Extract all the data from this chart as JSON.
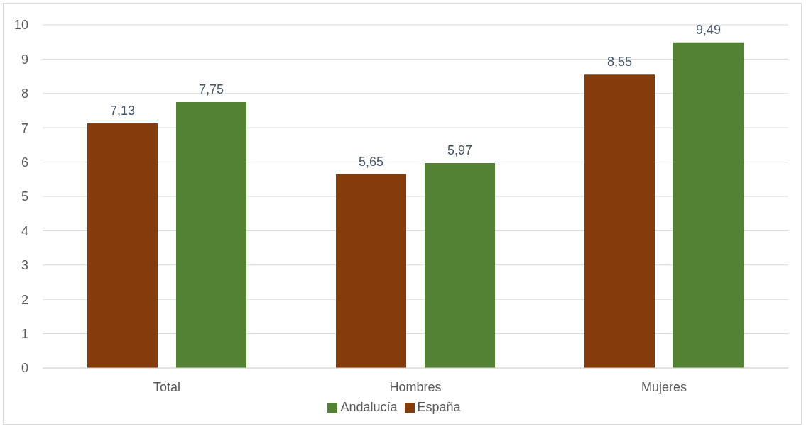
{
  "chart_data": {
    "type": "bar",
    "categories": [
      "Total",
      "Hombres",
      "Mujeres"
    ],
    "series": [
      {
        "name": "España",
        "color": "#843c0c",
        "values": [
          7.13,
          5.65,
          8.55
        ],
        "value_labels": [
          "7,13",
          "5,65",
          "8,55"
        ]
      },
      {
        "name": "Andalucía",
        "color": "#548235",
        "values": [
          7.75,
          5.97,
          9.49
        ],
        "value_labels": [
          "7,75",
          "5,97",
          "9,49"
        ]
      }
    ],
    "ylim": [
      0,
      10
    ],
    "yticks": [
      0,
      1,
      2,
      3,
      4,
      5,
      6,
      7,
      8,
      9,
      10
    ],
    "grid": "y",
    "legend": "bottom"
  }
}
